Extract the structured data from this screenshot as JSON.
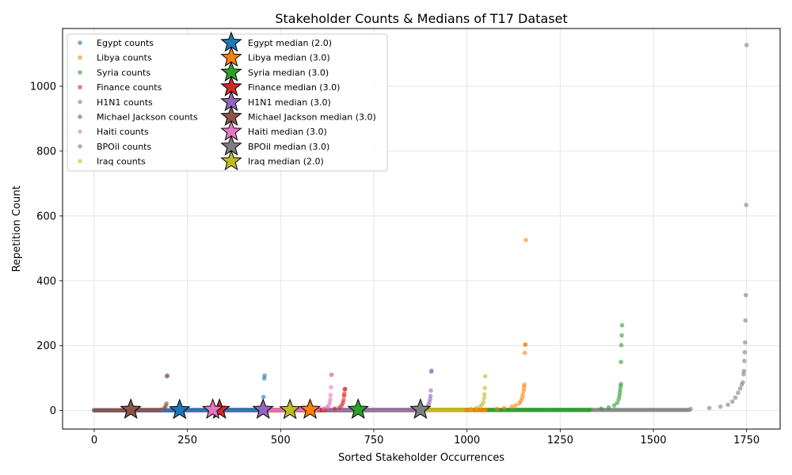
{
  "chart_data": {
    "type": "scatter",
    "title": "Stakeholder Counts & Medians of T17 Dataset",
    "xlabel": "Sorted Stakeholder Occurrences",
    "ylabel": "Repetition Count",
    "xlim": [
      -85,
      1840
    ],
    "ylim": [
      -57,
      1178
    ],
    "xticks": [
      0,
      250,
      500,
      750,
      1000,
      1250,
      1500,
      1750
    ],
    "yticks": [
      0,
      200,
      400,
      600,
      800,
      1000
    ],
    "grid": true,
    "legend_position": "upper-left",
    "series": [
      {
        "name": "Egypt",
        "count_label": "Egypt counts",
        "median_label": "Egypt median (2.0)",
        "color": "#1f77b4",
        "n_points": 459,
        "median": 2.0,
        "median_x": 229,
        "tail_points": [
          [
            440,
            3
          ],
          [
            446,
            5
          ],
          [
            450,
            10
          ],
          [
            452,
            20
          ],
          [
            454,
            42
          ],
          [
            456,
            99
          ],
          [
            457,
            108
          ]
        ]
      },
      {
        "name": "Libya",
        "count_label": "Libya counts",
        "median_label": "Libya median (3.0)",
        "color": "#ff7f0e",
        "n_points": 1158,
        "median": 3.0,
        "median_x": 579,
        "tail_points": [
          [
            1050,
            3
          ],
          [
            1080,
            5
          ],
          [
            1100,
            8
          ],
          [
            1120,
            12
          ],
          [
            1130,
            16
          ],
          [
            1140,
            22
          ],
          [
            1145,
            30
          ],
          [
            1148,
            40
          ],
          [
            1150,
            50
          ],
          [
            1152,
            62
          ],
          [
            1153,
            72
          ],
          [
            1154,
            80
          ],
          [
            1155,
            178
          ],
          [
            1156,
            203
          ],
          [
            1157,
            204
          ],
          [
            1158,
            526
          ]
        ]
      },
      {
        "name": "Syria",
        "count_label": "Syria counts",
        "median_label": "Syria median (3.0)",
        "color": "#2ca02c",
        "n_points": 1416,
        "median": 3.0,
        "median_x": 708,
        "tail_points": [
          [
            1330,
            3
          ],
          [
            1360,
            6
          ],
          [
            1380,
            10
          ],
          [
            1395,
            16
          ],
          [
            1403,
            24
          ],
          [
            1407,
            35
          ],
          [
            1409,
            45
          ],
          [
            1410,
            55
          ],
          [
            1411,
            65
          ],
          [
            1412,
            75
          ],
          [
            1413,
            82
          ],
          [
            1413,
            150
          ],
          [
            1414,
            202
          ],
          [
            1415,
            232
          ],
          [
            1416,
            263
          ]
        ]
      },
      {
        "name": "Finance",
        "count_label": "Finance counts",
        "median_label": "Finance median (3.0)",
        "color": "#d62728",
        "n_points": 673,
        "median": 3.0,
        "median_x": 336,
        "tail_points": [
          [
            620,
            3
          ],
          [
            645,
            6
          ],
          [
            658,
            10
          ],
          [
            664,
            16
          ],
          [
            667,
            24
          ],
          [
            669,
            32
          ],
          [
            670,
            45
          ],
          [
            671,
            52
          ],
          [
            672,
            65
          ],
          [
            673,
            67
          ]
        ]
      },
      {
        "name": "H1N1",
        "count_label": "H1N1 counts",
        "median_label": "H1N1 median (3.0)",
        "color": "#9467bd",
        "n_points": 906,
        "median": 3.0,
        "median_x": 453,
        "tail_points": [
          [
            870,
            3
          ],
          [
            885,
            6
          ],
          [
            893,
            10
          ],
          [
            897,
            18
          ],
          [
            899,
            26
          ],
          [
            901,
            35
          ],
          [
            902,
            45
          ],
          [
            903,
            62
          ],
          [
            904,
            120
          ],
          [
            905,
            123
          ]
        ]
      },
      {
        "name": "Michael Jackson",
        "count_label": "Michael Jackson counts",
        "median_label": "Michael Jackson median (3.0)",
        "color": "#8c564b",
        "n_points": 196,
        "median": 3.0,
        "median_x": 98,
        "tail_points": [
          [
            180,
            3
          ],
          [
            187,
            6
          ],
          [
            190,
            10
          ],
          [
            192,
            16
          ],
          [
            194,
            22
          ],
          [
            195,
            106
          ],
          [
            196,
            108
          ]
        ]
      },
      {
        "name": "Haiti",
        "count_label": "Haiti counts",
        "median_label": "Haiti median (3.0)",
        "color": "#e377c2",
        "n_points": 637,
        "median": 3.0,
        "median_x": 318,
        "tail_points": [
          [
            600,
            3
          ],
          [
            615,
            6
          ],
          [
            624,
            10
          ],
          [
            629,
            16
          ],
          [
            632,
            25
          ],
          [
            633,
            35
          ],
          [
            634,
            48
          ],
          [
            635,
            72
          ],
          [
            636,
            110
          ],
          [
            637,
            111
          ]
        ]
      },
      {
        "name": "BPOil",
        "count_label": "BPOil counts",
        "median_label": "BPOil median (3.0)",
        "color": "#7f7f7f",
        "n_points": 1750,
        "median": 3.0,
        "median_x": 875,
        "tail_points": [
          [
            1600,
            5
          ],
          [
            1650,
            8
          ],
          [
            1680,
            12
          ],
          [
            1700,
            18
          ],
          [
            1712,
            28
          ],
          [
            1720,
            40
          ],
          [
            1727,
            55
          ],
          [
            1733,
            68
          ],
          [
            1737,
            80
          ],
          [
            1740,
            87
          ],
          [
            1742,
            112
          ],
          [
            1743,
            122
          ],
          [
            1744,
            153
          ],
          [
            1745,
            180
          ],
          [
            1746,
            210
          ],
          [
            1747,
            278
          ],
          [
            1748,
            356
          ],
          [
            1749,
            634
          ],
          [
            1750,
            1127
          ]
        ]
      },
      {
        "name": "Iraq",
        "count_label": "Iraq counts",
        "median_label": "Iraq median (2.0)",
        "color": "#bcbd22",
        "n_points": 1050,
        "median": 2.0,
        "median_x": 525,
        "tail_points": [
          [
            990,
            3
          ],
          [
            1010,
            5
          ],
          [
            1025,
            8
          ],
          [
            1035,
            12
          ],
          [
            1040,
            18
          ],
          [
            1044,
            26
          ],
          [
            1046,
            38
          ],
          [
            1047,
            50
          ],
          [
            1048,
            70
          ],
          [
            1049,
            106
          ]
        ]
      }
    ]
  }
}
